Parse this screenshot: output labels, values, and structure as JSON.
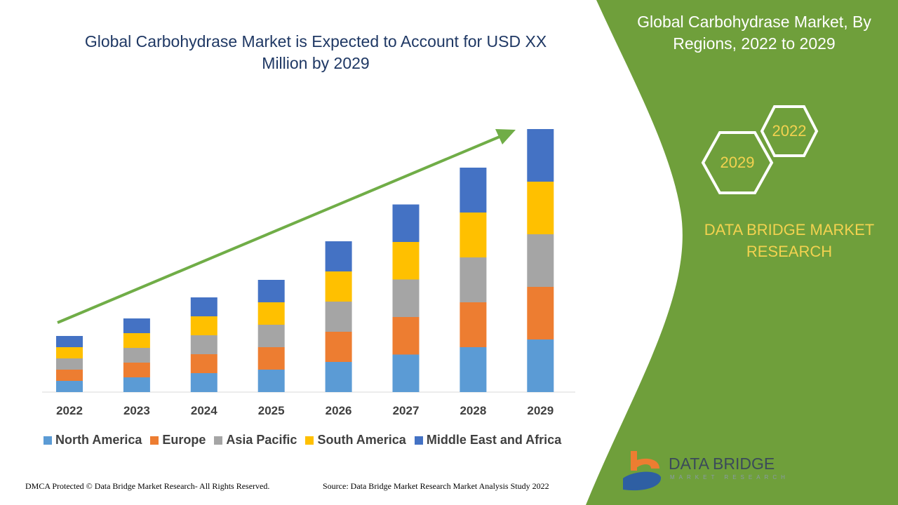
{
  "title": "Global Carbohydrase Market is Expected to Account for USD XX Million by 2029",
  "side_panel": {
    "title": "Global Carbohydrase Market, By Regions, 2022 to 2029",
    "hex_labels": [
      "2022",
      "2029"
    ],
    "brand": "DATA BRIDGE MARKET RESEARCH",
    "logo_text": "DATA BRIDGE",
    "logo_subtext": "MARKET RESEARCH",
    "color": "#6f9f3b"
  },
  "footer": {
    "left": "DMCA Protected © Data Bridge Market Research- All Rights Reserved.",
    "right": "Source: Data Bridge Market Research Market Analysis Study 2022"
  },
  "chart_data": {
    "type": "bar",
    "stacked": true,
    "categories": [
      "2022",
      "2023",
      "2024",
      "2025",
      "2026",
      "2027",
      "2028",
      "2029"
    ],
    "series": [
      {
        "name": "North America",
        "color": "#5b9bd5",
        "values": [
          3.2,
          4.2,
          5.4,
          6.4,
          8.6,
          10.7,
          12.8,
          15.0
        ]
      },
      {
        "name": "Europe",
        "color": "#ed7d31",
        "values": [
          3.2,
          4.2,
          5.4,
          6.4,
          8.6,
          10.7,
          12.8,
          15.0
        ]
      },
      {
        "name": "Asia Pacific",
        "color": "#a5a5a5",
        "values": [
          3.2,
          4.2,
          5.4,
          6.4,
          8.6,
          10.7,
          12.8,
          15.0
        ]
      },
      {
        "name": "South America",
        "color": "#ffc000",
        "values": [
          3.2,
          4.2,
          5.4,
          6.4,
          8.6,
          10.7,
          12.8,
          15.0
        ]
      },
      {
        "name": "Middle East and Africa",
        "color": "#4472c4",
        "values": [
          3.2,
          4.2,
          5.4,
          6.4,
          8.6,
          10.7,
          12.8,
          15.0
        ]
      }
    ],
    "ylim": [
      0,
      75
    ],
    "grid": false,
    "legend": "bottom",
    "trend_arrow": true
  }
}
